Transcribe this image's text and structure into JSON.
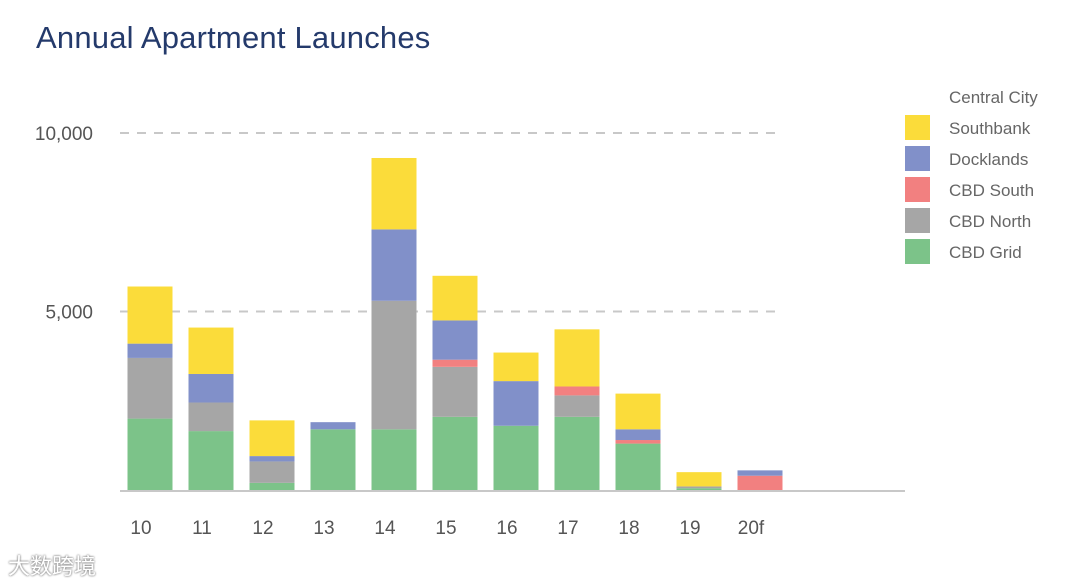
{
  "chart_data": {
    "type": "bar",
    "stacked": true,
    "title": "Annual Apartment Launches",
    "xlabel": "",
    "ylabel": "",
    "ylim": [
      0,
      10000
    ],
    "yticks": [
      {
        "value": 5000,
        "label": "5,000"
      },
      {
        "value": 10000,
        "label": "10,000"
      }
    ],
    "grid": "dashed-horizontal",
    "legend_position": "right",
    "legend_title": "Central City",
    "categories": [
      "10",
      "11",
      "12",
      "13",
      "14",
      "15",
      "16",
      "17",
      "18",
      "19",
      "20f"
    ],
    "series": [
      {
        "name": "CBD Grid",
        "color": "#7cc389",
        "values": [
          2000,
          1650,
          200,
          1700,
          1700,
          2050,
          1800,
          2050,
          1300,
          50,
          0
        ]
      },
      {
        "name": "CBD North",
        "color": "#a6a6a6",
        "values": [
          1700,
          800,
          600,
          0,
          3600,
          1400,
          0,
          600,
          0,
          50,
          0
        ]
      },
      {
        "name": "CBD South",
        "color": "#f28080",
        "values": [
          0,
          0,
          0,
          0,
          0,
          200,
          0,
          250,
          100,
          0,
          400
        ]
      },
      {
        "name": "Docklands",
        "color": "#8190c9",
        "values": [
          400,
          800,
          150,
          200,
          2000,
          1100,
          1250,
          0,
          300,
          0,
          150
        ]
      },
      {
        "name": "Southbank",
        "color": "#fbdc3a",
        "values": [
          1600,
          1300,
          1000,
          0,
          2000,
          1250,
          800,
          1600,
          1000,
          400,
          0
        ]
      }
    ]
  },
  "watermark": "大数跨境"
}
